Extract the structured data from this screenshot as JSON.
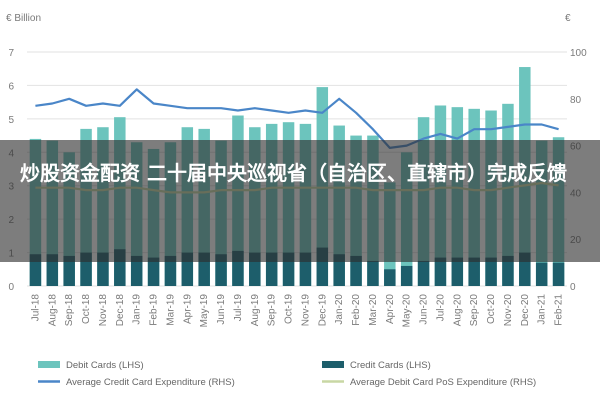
{
  "chart_data": {
    "type": "bar",
    "left_axis_unit": "€ Billion",
    "right_axis_unit": "€",
    "ylim_left": [
      0,
      7
    ],
    "ylim_right": [
      0,
      100
    ],
    "yticks_left": [
      "0",
      "1",
      "2",
      "3",
      "4",
      "5",
      "6",
      "7"
    ],
    "yticks_right": [
      "0",
      "20",
      "40",
      "60",
      "80",
      "100"
    ],
    "categories": [
      "Jul-18",
      "Aug-18",
      "Sep-18",
      "Oct-18",
      "Nov-18",
      "Dec-18",
      "Jan-19",
      "Feb-19",
      "Mar-19",
      "Apr-19",
      "May-19",
      "Jun-19",
      "Jul-19",
      "Aug-19",
      "Sep-19",
      "Oct-19",
      "Nov-19",
      "Dec-19",
      "Jan-20",
      "Feb-20",
      "Mar-20",
      "Apr-20",
      "May-20",
      "Jun-20",
      "Jul-20",
      "Aug-20",
      "Sep-20",
      "Oct-20",
      "Nov-20",
      "Dec-20",
      "Jan-21",
      "Feb-21"
    ],
    "series": [
      {
        "name": "Debit Cards (LHS)",
        "kind": "bar",
        "axis": "left",
        "color": "#6cc4bd",
        "values": [
          4.4,
          4.35,
          4.0,
          4.7,
          4.75,
          5.05,
          4.3,
          4.1,
          4.3,
          4.75,
          4.7,
          4.35,
          5.1,
          4.75,
          4.85,
          4.9,
          4.85,
          5.95,
          4.8,
          4.5,
          4.5,
          3.1,
          4.0,
          5.05,
          5.4,
          5.35,
          5.3,
          5.25,
          5.45,
          6.55,
          4.35,
          4.45
        ]
      },
      {
        "name": "Credit Cards (LHS)",
        "kind": "bar",
        "axis": "left",
        "color": "#1d5e6b",
        "values": [
          0.95,
          0.95,
          0.9,
          1.0,
          1.0,
          1.1,
          0.9,
          0.85,
          0.9,
          1.0,
          1.0,
          0.95,
          1.05,
          1.0,
          1.0,
          1.0,
          1.0,
          1.15,
          0.95,
          0.9,
          0.75,
          0.5,
          0.6,
          0.75,
          0.85,
          0.85,
          0.85,
          0.85,
          0.9,
          1.0,
          0.7,
          0.7
        ]
      },
      {
        "name": "Average Credit Card Expenditure (RHS)",
        "kind": "line",
        "axis": "right",
        "color": "#4a86c8",
        "values": [
          77,
          78,
          80,
          77,
          78,
          77,
          84,
          78,
          77,
          76,
          76,
          76,
          75,
          76,
          75,
          74,
          75,
          74,
          80,
          74,
          67,
          59,
          60,
          63,
          65,
          63,
          67,
          67,
          68,
          69,
          69,
          67
        ]
      },
      {
        "name": "Average Debit Card PoS Expenditure (RHS)",
        "kind": "line",
        "axis": "right",
        "color": "#c8d7a4",
        "values": [
          42,
          42,
          42,
          41,
          41,
          42,
          42,
          41,
          40,
          40,
          40,
          41,
          41,
          41,
          42,
          42,
          42,
          42,
          42,
          42,
          41,
          41,
          41,
          41,
          42,
          42,
          41,
          41,
          42,
          43,
          44,
          43
        ]
      }
    ]
  },
  "overlay": {
    "text": "炒股资金配资 二十届中央巡视省（自治区、直辖市）完成反馈"
  }
}
